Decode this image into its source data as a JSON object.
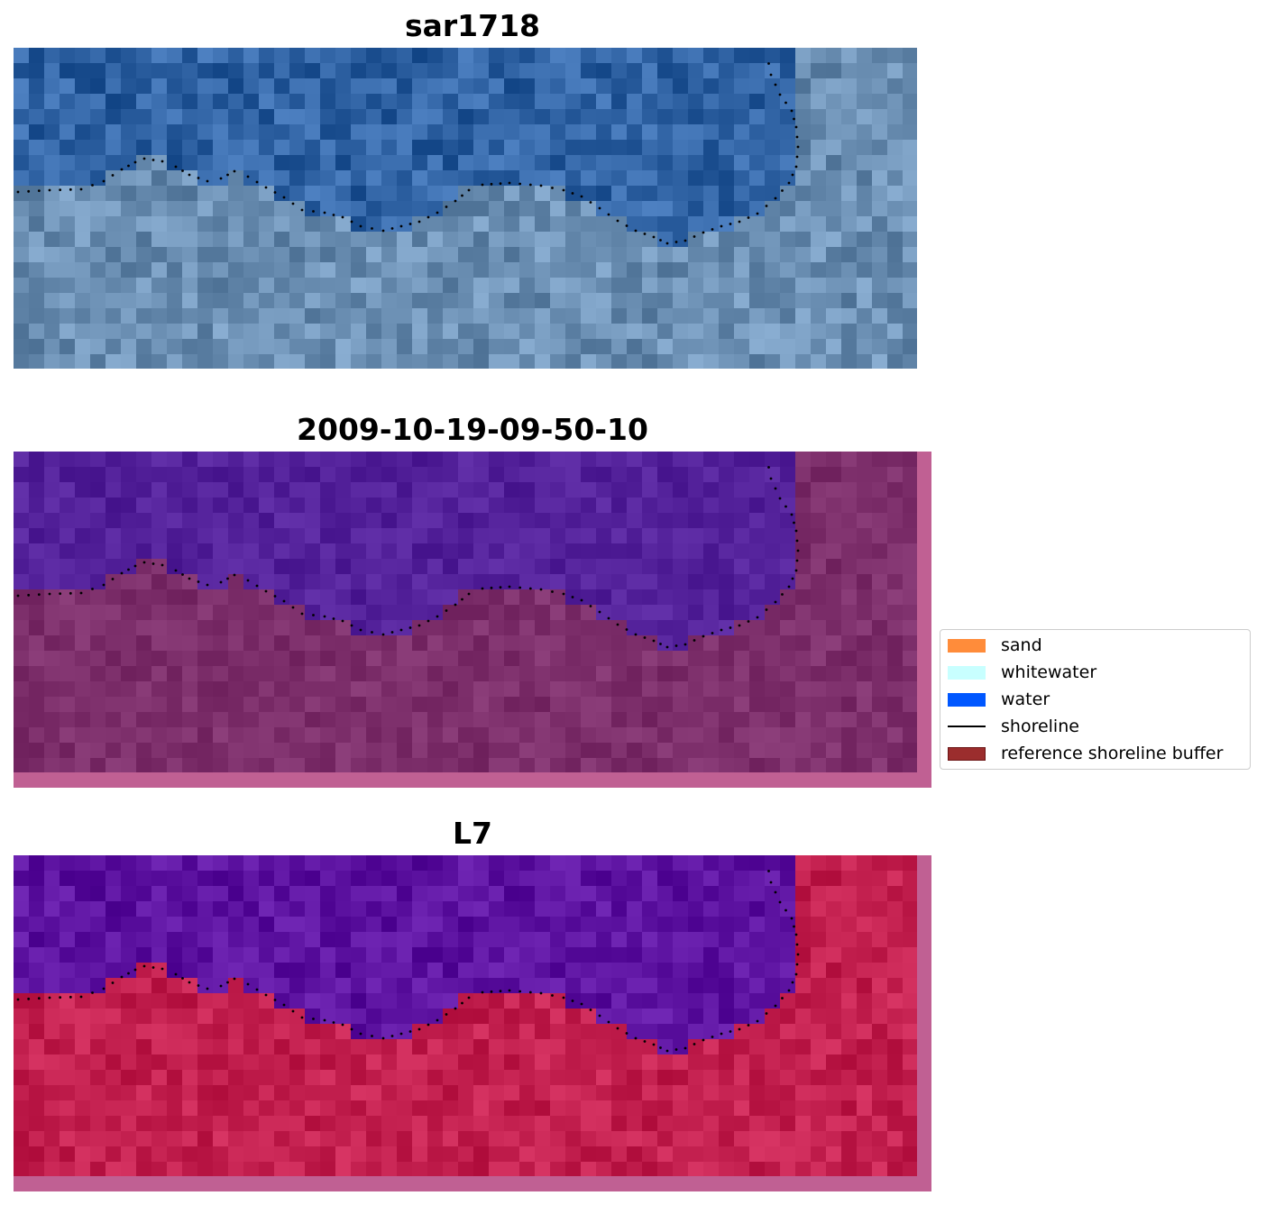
{
  "figure": {
    "panels": [
      {
        "title": "sar1718"
      },
      {
        "title": "2009-10-19-09-50-10"
      },
      {
        "title": "L7"
      }
    ],
    "legend": {
      "items": [
        {
          "label": "sand",
          "color": "#ff8c3a",
          "kind": "patch"
        },
        {
          "label": "whitewater",
          "color": "#c8ffff",
          "kind": "patch"
        },
        {
          "label": "water",
          "color": "#0057ff",
          "kind": "patch"
        },
        {
          "label": "shoreline",
          "color": "#000000",
          "kind": "line"
        },
        {
          "label": "reference shoreline buffer",
          "color": "#9b2d2d",
          "edge": "#6b1414",
          "kind": "patch"
        }
      ]
    },
    "colors": {
      "sar_water": "#2f62a3",
      "sar_land": "#6b8fb3",
      "classified_water": "#53219a",
      "classified_land": "#7d2f6b",
      "classified_frame": "#c06093",
      "mndwi_water": "#5c12a0",
      "mndwi_land": "#c3204f",
      "mndwi_frame": "#c06093"
    }
  }
}
